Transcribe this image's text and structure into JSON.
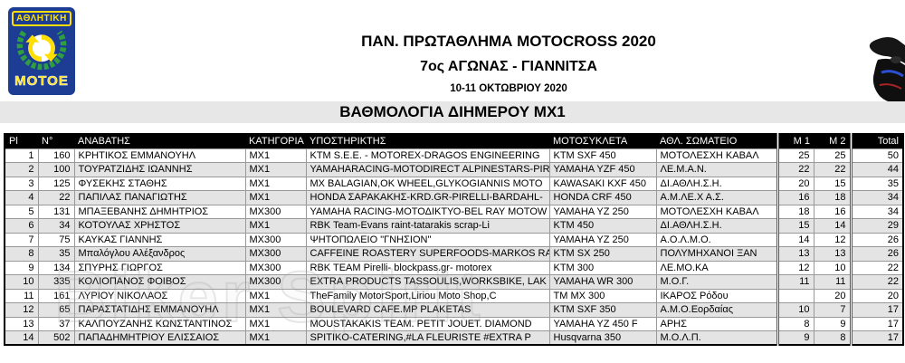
{
  "page": {
    "title": "ΠΑΝ. ΠΡΩΤΑΘΛΗΜΑ MOTOCROSS 2020",
    "subtitle": "7ος ΑΓΩΝΑΣ - ΓΙΑΝΝΙΤΣΑ",
    "date": "10-11 ΟΚΤΩΒΡΙΟΥ 2020",
    "section_title": "ΒΑΘΜΟΛΟΓΙΑ ΔΙΗΜΕΡΟΥ MX1",
    "watermark": "Biker Spirit"
  },
  "logo": {
    "top_text": "ΑΘΛΗΤΙΚΗ",
    "bottom_text": "ΜΟΤΟΕ",
    "colors": {
      "blue": "#1d3d94",
      "yellow": "#ffdf00",
      "green": "#2f9e41"
    }
  },
  "table": {
    "columns": [
      "Pl",
      "N°",
      "ΑΝΑΒΑΤΗΣ",
      "ΚΑΤΗΓΟΡΙΑ",
      "ΥΠΟΣΤΗΡΙΚΤΗΣ",
      "ΜΟΤΟΣΥΚΛΕΤΑ",
      "ΑΘΛ. ΣΩΜΑΤΕΙΟ",
      "Μ 1",
      "Μ 2",
      "Total"
    ],
    "rows": [
      [
        "1",
        "160",
        "ΚΡΗΤΙΚΟΣ ΕΜΜΑΝΟΥΗΛ",
        "MX1",
        "KTM S.E.E. - MOTOREX-DRAGOS ENGINEERING",
        "KTM SXF 450",
        "ΜΟΤΟΛΕΣΧΗ ΚΑΒΑΛ",
        "25",
        "25",
        "50"
      ],
      [
        "2",
        "100",
        "ΤΟΥΡΑΤΖΙΔΗΣ ΙΩΑΝΝΗΣ",
        "MX1",
        "YAMAHARACING-MOTODIRECT ALPINESTARS-PIR",
        "YAMAHA YZF 450",
        "ΛΕ.Μ.Α.Ν.",
        "22",
        "22",
        "44"
      ],
      [
        "3",
        "125",
        "ΦΥΣΕΚΗΣ ΣΤΑΘΗΣ",
        "MX1",
        "MX BALAGIAN,OK WHEEL,GLYKOGIANNIS MOTO",
        "KAWASAKI KXF 450",
        "ΔΙ.ΑΘΛΗ.Σ.Η.",
        "20",
        "15",
        "35"
      ],
      [
        "4",
        "22",
        "ΠΑΠΙΛΑΣ ΠΑΝΑΓΙΩΤΗΣ",
        "MX1",
        "HONDA ΣΑΡΑΚΑΚΗΣ-KRD.GR-PIRELLI-BARDAHL-",
        "HONDA CRF 450",
        "Α.Μ.ΛΕ.Χ  Α.Σ.",
        "16",
        "18",
        "34"
      ],
      [
        "5",
        "131",
        "ΜΠΑΞΕΒΑΝΗΣ ΔΗΜΗΤΡΙΟΣ",
        "MX300",
        "YAMAHA RACING-ΜΟΤΟΔΙΚΤΥΟ-BEL RAY MOTOW",
        "YAMAHA YZ 250",
        "ΜΟΤΟΛΕΣΧΗ ΚΑΒΑΛ",
        "18",
        "16",
        "34"
      ],
      [
        "6",
        "34",
        "ΚΟΤΟΥΛΑΣ ΧΡΗΣΤΟΣ",
        "MX1",
        "RBK Team-Evans raint-tatarakis scrap-Li",
        "KTM 450",
        "ΔΙ.ΑΘΛΗ.Σ.Η.",
        "15",
        "14",
        "29"
      ],
      [
        "7",
        "75",
        "ΚΑΥΚΑΣ ΓΙΑΝΝΗΣ",
        "MX300",
        "ΨΗΤΟΠΩΛΕΙΟ \"ΓΝΗΣΙΟΝ\"",
        "YAMAHA YZ 250",
        "Α.Ο.Λ.Μ.Ο.",
        "14",
        "12",
        "26"
      ],
      [
        "8",
        "35",
        "Μπαλόγλου Αλέξανδρος",
        "MX300",
        "CAFFEINE ROASTERY SUPERFOODS-MARKOS RAC",
        "KTM SX 250",
        "ΠΟΛΥΜΗΧΑΝΟΙ ΞΑΝ",
        "13",
        "13",
        "26"
      ],
      [
        "9",
        "134",
        "ΣΠΥΡΗΣ ΓΙΩΡΓΟΣ",
        "MX300",
        "RBK TEAM Pirelli- blockpass.gr- motorex",
        "KTM 300",
        "ΛΕ.ΜΟ.ΚΑ",
        "12",
        "10",
        "22"
      ],
      [
        "10",
        "335",
        "ΚΟΛΙΟΠΑΝΟΣ ΦΟΙΒΟΣ",
        "MX300",
        "EXTRA PRODUCTS TASSOULIS,WORKSBIKE, LAK",
        "YAMAHA WR 300",
        "Μ.Ο.Γ.",
        "11",
        "11",
        "22"
      ],
      [
        "11",
        "161",
        "ΛΥΡΙΟΥ ΝΙΚΟΛΑΟΣ",
        "MX1",
        "TheFamily MotorSport,Liriou Moto Shop,C",
        "TM  MX 300",
        "ΙΚΑΡΟΣ Ρόδου",
        "",
        "20",
        "20"
      ],
      [
        "12",
        "65",
        "ΠΑΡΑΣΤΑΤΙΔΗΣ ΕΜΜΑΝΟΥΗΛ",
        "MX1",
        "BOULEVARD CAFE.MP PLAKETAS",
        "KTM SXF 350",
        "Α.Μ.Ο.Εορδαίας",
        "10",
        "7",
        "17"
      ],
      [
        "13",
        "37",
        "ΚΑΛΠΟΥΖΑΝΗΣ ΚΩΝΣΤΑΝΤΙΝΟΣ",
        "MX1",
        "MOUSTAKAKIS TEAM. PETIT JOUET. DIAMOND",
        "YAMAHA YZ 450 F",
        "ΑΡΗΣ",
        "8",
        "9",
        "17"
      ],
      [
        "14",
        "502",
        "ΠΑΠΑΔΗΜΗΤΡΙΟΥ ΕΛΙΣΣΑΙΟΣ",
        "MX1",
        "SPITIKO-CATERING,#LA FLEURISTE #EXTRA P",
        "Husqvarna 350",
        "Μ.Ο.Λ.Π.",
        "9",
        "8",
        "17"
      ]
    ]
  }
}
